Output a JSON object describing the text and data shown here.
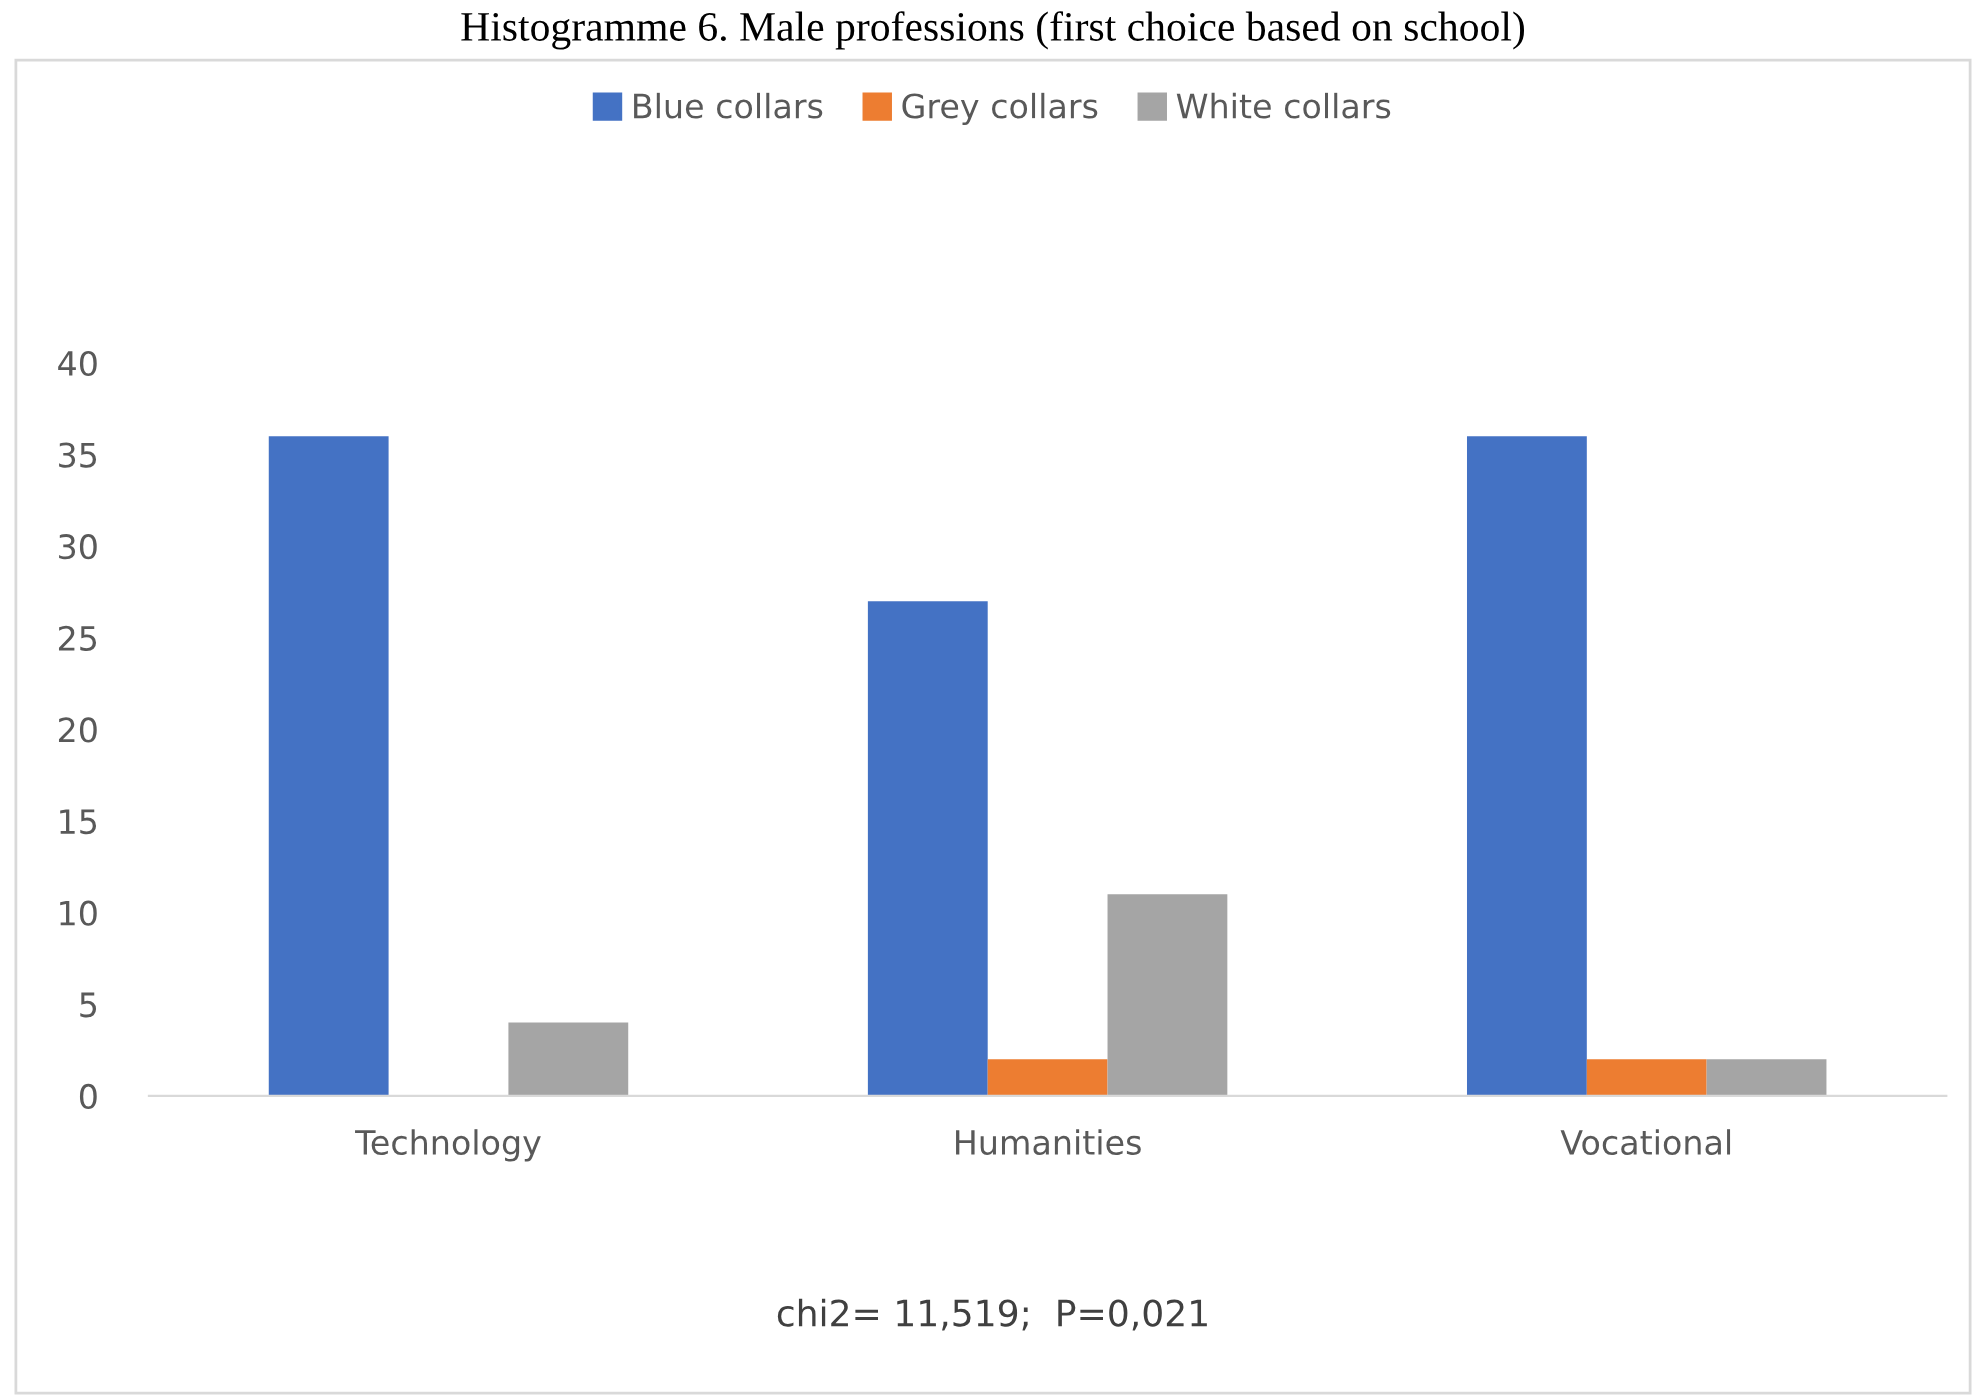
{
  "chart_data": {
    "type": "bar",
    "title": "Histogramme 6. Male professions (first choice based on school)",
    "categories": [
      "Technology",
      "Humanities",
      "Vocational"
    ],
    "series": [
      {
        "name": "Blue collars",
        "color": "#4472c4",
        "values": [
          36,
          27,
          36
        ]
      },
      {
        "name": "Grey collars",
        "color": "#ed7d31",
        "values": [
          0,
          2,
          2
        ]
      },
      {
        "name": "White collars",
        "color": "#a5a5a5",
        "values": [
          4,
          11,
          2
        ]
      }
    ],
    "ylim": [
      0,
      40
    ],
    "yticks": [
      0,
      5,
      10,
      15,
      20,
      25,
      30,
      35,
      40
    ],
    "grid": false,
    "legend": "top",
    "annotations": [
      "chi2= 11,519;  P=0,021"
    ]
  }
}
